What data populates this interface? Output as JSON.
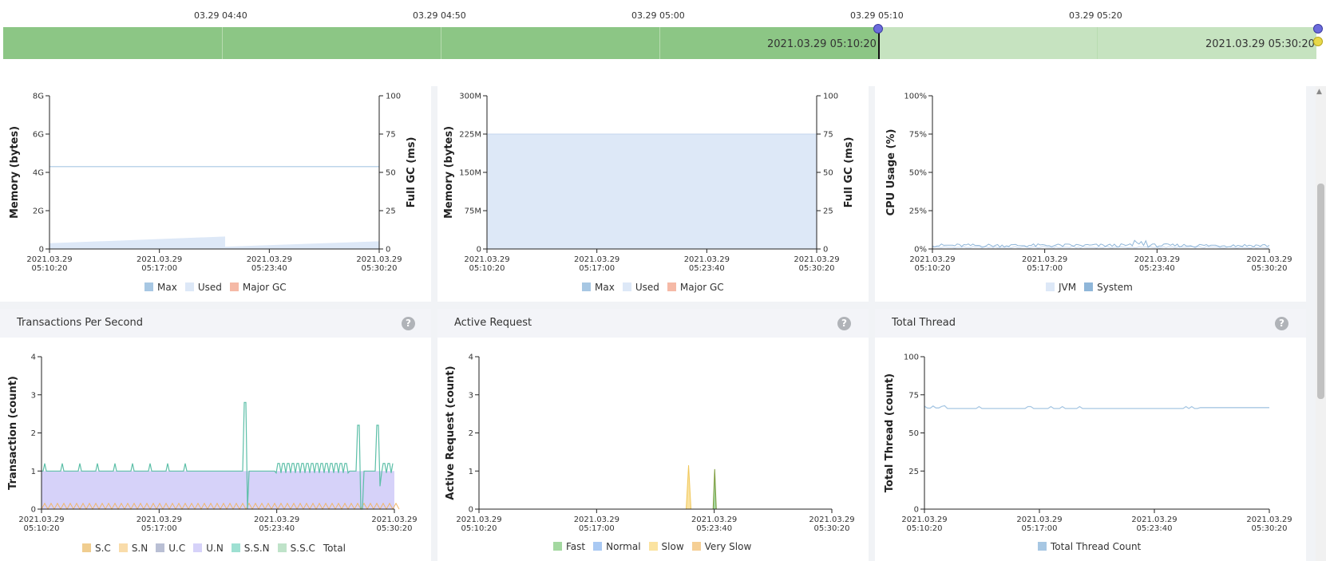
{
  "timeline": {
    "ticks": [
      "03.29 04:40",
      "03.29 04:50",
      "03.29 05:00",
      "03.29 05:10",
      "03.29 05:20"
    ],
    "range_start": "2021.03.29 05:10:20",
    "range_end": "2021.03.29 05:30:20",
    "colors": {
      "history": "#8cc685",
      "selected": "#c6e3c0",
      "handle": "#6b6bdc",
      "end_handle": "#e8d84a"
    }
  },
  "x_ticks": [
    [
      "2021.03.29",
      "05:10:20"
    ],
    [
      "2021.03.29",
      "05:17:00"
    ],
    [
      "2021.03.29",
      "05:23:40"
    ],
    [
      "2021.03.29",
      "05:30:20"
    ]
  ],
  "charts": {
    "heap": {
      "ylabel": "Memory (bytes)",
      "y2label": "Full GC (ms)",
      "yticks": [
        "0",
        "2G",
        "4G",
        "6G",
        "8G"
      ],
      "y2ticks": [
        "0",
        "25",
        "50",
        "75",
        "100"
      ],
      "legend": [
        {
          "label": "Max",
          "color": "#a7c7e3"
        },
        {
          "label": "Used",
          "color": "#dde8f7"
        },
        {
          "label": "Major GC",
          "color": "#f5b9a6"
        }
      ]
    },
    "permgen": {
      "ylabel": "Memory (bytes)",
      "y2label": "Full GC (ms)",
      "yticks": [
        "0",
        "75M",
        "150M",
        "225M",
        "300M"
      ],
      "y2ticks": [
        "0",
        "25",
        "50",
        "75",
        "100"
      ],
      "legend": [
        {
          "label": "Max",
          "color": "#a7c7e3"
        },
        {
          "label": "Used",
          "color": "#dde8f7"
        },
        {
          "label": "Major GC",
          "color": "#f5b9a6"
        }
      ]
    },
    "cpu": {
      "ylabel": "CPU Usage (%)",
      "yticks": [
        "0%",
        "25%",
        "50%",
        "75%",
        "100%"
      ],
      "legend": [
        {
          "label": "JVM",
          "color": "#dde8f7"
        },
        {
          "label": "System",
          "color": "#8fb6d9"
        }
      ]
    },
    "tps": {
      "title": "Transactions Per Second",
      "ylabel": "Transaction (count)",
      "yticks": [
        "0",
        "1",
        "2",
        "3",
        "4"
      ],
      "legend": [
        {
          "label": "S.C",
          "color": "#f0cd8f"
        },
        {
          "label": "S.N",
          "color": "#f9dcaa"
        },
        {
          "label": "U.C",
          "color": "#b9bfd4"
        },
        {
          "label": "U.N",
          "color": "#d6d2f9"
        },
        {
          "label": "S.S.N",
          "color": "#9ee0d2"
        },
        {
          "label": "S.S.C",
          "color": "#bfe3c9"
        },
        {
          "label": "Total",
          "color": ""
        }
      ]
    },
    "active": {
      "title": "Active Request",
      "ylabel": "Active Request (count)",
      "yticks": [
        "0",
        "1",
        "2",
        "3",
        "4"
      ],
      "legend": [
        {
          "label": "Fast",
          "color": "#a3d8a0"
        },
        {
          "label": "Normal",
          "color": "#a9c9f3"
        },
        {
          "label": "Slow",
          "color": "#fbe3a0"
        },
        {
          "label": "Very Slow",
          "color": "#f5cf95"
        }
      ]
    },
    "thread": {
      "title": "Total Thread",
      "ylabel": "Total Thread (count)",
      "yticks": [
        "0",
        "25",
        "50",
        "75",
        "100"
      ],
      "legend": [
        {
          "label": "Total Thread Count",
          "color": "#a7c7e3"
        }
      ]
    }
  },
  "chart_data": [
    {
      "type": "area",
      "x": [
        "2021.03.29 05:10:20",
        "2021.03.29 05:17:00",
        "2021.03.29 05:23:40",
        "2021.03.29 05:30:20"
      ],
      "ylabel": "Memory (bytes)",
      "ylim": [
        0,
        8
      ],
      "series": [
        {
          "name": "Max",
          "values": [
            4.3,
            4.3,
            4.3,
            4.3
          ],
          "unit": "G"
        },
        {
          "name": "Used",
          "values": [
            0.3,
            0.55,
            0.1,
            0.4
          ],
          "unit": "G"
        }
      ],
      "grid": false,
      "legend": "bottom"
    },
    {
      "type": "area",
      "x": [
        "2021.03.29 05:10:20",
        "2021.03.29 05:17:00",
        "2021.03.29 05:23:40",
        "2021.03.29 05:30:20"
      ],
      "ylabel": "Memory (bytes)",
      "ylim": [
        0,
        300
      ],
      "series": [
        {
          "name": "Max",
          "values": [
            225,
            225,
            225,
            225
          ],
          "unit": "M"
        },
        {
          "name": "Used",
          "values": [
            224,
            224,
            224,
            224
          ],
          "unit": "M"
        }
      ],
      "grid": false,
      "legend": "bottom"
    },
    {
      "type": "line",
      "x": [
        "2021.03.29 05:10:20",
        "2021.03.29 05:17:00",
        "2021.03.29 05:23:40",
        "2021.03.29 05:30:20"
      ],
      "ylabel": "CPU Usage (%)",
      "ylim": [
        0,
        100
      ],
      "series": [
        {
          "name": "JVM",
          "values": [
            1,
            1,
            1,
            1
          ]
        },
        {
          "name": "System",
          "values": [
            2,
            2,
            3,
            2
          ]
        }
      ],
      "grid": false,
      "legend": "bottom"
    },
    {
      "type": "area",
      "title": "Transactions Per Second",
      "x": [
        "2021.03.29 05:10:20",
        "2021.03.29 05:17:00",
        "2021.03.29 05:23:40",
        "2021.03.29 05:30:20"
      ],
      "ylabel": "Transaction (count)",
      "ylim": [
        0,
        4
      ],
      "series": [
        {
          "name": "U.N",
          "values": [
            1,
            1,
            1,
            1
          ]
        },
        {
          "name": "S.N",
          "values": [
            0.15,
            0.15,
            0.15,
            0.15
          ]
        },
        {
          "name": "Total",
          "values": [
            1.1,
            1.1,
            1.1,
            1.1
          ]
        }
      ],
      "grid": false,
      "legend": "bottom"
    },
    {
      "type": "area",
      "title": "Active Request",
      "x": [
        "2021.03.29 05:10:20",
        "2021.03.29 05:17:00",
        "2021.03.29 05:23:40",
        "2021.03.29 05:30:20"
      ],
      "ylabel": "Active Request (count)",
      "ylim": [
        0,
        4
      ],
      "series": [
        {
          "name": "Slow",
          "values": [
            0,
            0,
            1.1,
            0
          ]
        },
        {
          "name": "Fast",
          "values": [
            0,
            0,
            1.0,
            0
          ]
        }
      ],
      "grid": false,
      "legend": "bottom"
    },
    {
      "type": "line",
      "title": "Total Thread",
      "x": [
        "2021.03.29 05:10:20",
        "2021.03.29 05:17:00",
        "2021.03.29 05:23:40",
        "2021.03.29 05:30:20"
      ],
      "ylabel": "Total Thread (count)",
      "ylim": [
        0,
        100
      ],
      "series": [
        {
          "name": "Total Thread Count",
          "values": [
            67,
            66,
            67,
            67
          ]
        }
      ],
      "grid": false,
      "legend": "bottom"
    }
  ]
}
